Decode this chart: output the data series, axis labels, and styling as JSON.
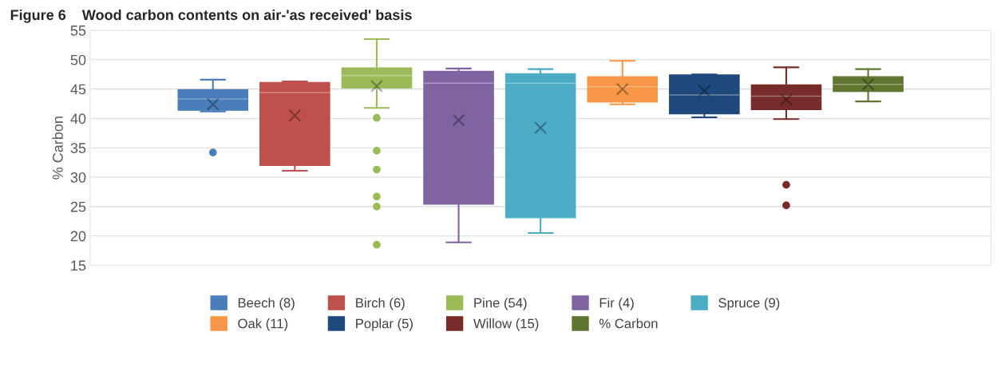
{
  "chart_data": {
    "type": "box",
    "title": "Figure 6    Wood carbon contents on air-'as received' basis",
    "ylabel": "% Carbon",
    "categories": [
      null,
      null,
      null,
      null,
      null,
      null,
      null,
      null,
      null,
      null,
      null
    ],
    "ylim": [
      15,
      55
    ],
    "yticks": [
      15,
      20,
      25,
      30,
      35,
      40,
      45,
      50,
      55
    ],
    "grid": "y",
    "legend": "bottom",
    "tick_labels": "y",
    "series": [
      {
        "name": "Beech (8)",
        "color": "#4a7ebb",
        "boxes": [
          null,
          {
            "low": 41.2,
            "q1": 41.4,
            "median": 43.3,
            "q3": 44.9,
            "high": 46.6,
            "mean": 42.4,
            "outliers": [
              34.2
            ]
          },
          null,
          null,
          null,
          null,
          null,
          null,
          null,
          null,
          null
        ]
      },
      {
        "name": "Birch (6)",
        "color": "#c0504d",
        "boxes": [
          null,
          null,
          {
            "low": 31.1,
            "q1": 32.0,
            "median": 44.4,
            "q3": 46.1,
            "high": 46.3,
            "mean": 40.5
          },
          null,
          null,
          null,
          null,
          null,
          null,
          null,
          null
        ]
      },
      {
        "name": "Pine (54)",
        "color": "#9bbb59",
        "boxes": [
          null,
          null,
          null,
          {
            "low": 41.8,
            "q1": 45.2,
            "median": 47.3,
            "q3": 48.6,
            "high": 53.5,
            "mean": 45.5,
            "outliers": [
              40.1,
              34.5,
              31.3,
              26.7,
              25.0,
              18.5
            ]
          },
          null,
          null,
          null,
          null,
          null,
          null,
          null
        ]
      },
      {
        "name": "Fir (4)",
        "color": "#8064a2",
        "boxes": [
          null,
          null,
          null,
          null,
          {
            "low": 18.9,
            "q1": 25.4,
            "median": 46.0,
            "q3": 48.0,
            "high": 48.5,
            "mean": 39.7
          },
          null,
          null,
          null,
          null,
          null,
          null
        ]
      },
      {
        "name": "Spruce (9)",
        "color": "#4bacc6",
        "boxes": [
          null,
          null,
          null,
          null,
          null,
          {
            "low": 20.5,
            "q1": 23.1,
            "median": 46.0,
            "q3": 47.6,
            "high": 48.4,
            "mean": 38.4
          },
          null,
          null,
          null,
          null,
          null
        ]
      },
      {
        "name": "Oak (11)",
        "color": "#f79646",
        "boxes": [
          null,
          null,
          null,
          null,
          null,
          null,
          {
            "low": 42.4,
            "q1": 42.8,
            "median": 45.4,
            "q3": 47.1,
            "high": 49.8,
            "mean": 45.0
          },
          null,
          null,
          null,
          null
        ]
      },
      {
        "name": "Poplar (5)",
        "color": "#1f497d",
        "boxes": [
          null,
          null,
          null,
          null,
          null,
          null,
          null,
          {
            "low": 40.2,
            "q1": 40.8,
            "median": 44.0,
            "q3": 47.4,
            "high": 47.5,
            "mean": 44.7
          },
          null,
          null,
          null
        ]
      },
      {
        "name": "Willow (15)",
        "color": "#772c2a",
        "boxes": [
          null,
          null,
          null,
          null,
          null,
          null,
          null,
          null,
          {
            "low": 39.9,
            "q1": 41.5,
            "median": 43.8,
            "q3": 45.7,
            "high": 48.7,
            "mean": 43.2,
            "outliers": [
              28.7,
              25.2
            ]
          },
          null,
          null
        ]
      },
      {
        "name": "% Carbon",
        "color": "#5f7530",
        "boxes": [
          null,
          null,
          null,
          null,
          null,
          null,
          null,
          null,
          null,
          {
            "low": 42.9,
            "q1": 44.6,
            "median": 45.8,
            "q3": 47.1,
            "high": 48.4,
            "mean": 45.8
          },
          null
        ]
      }
    ]
  }
}
